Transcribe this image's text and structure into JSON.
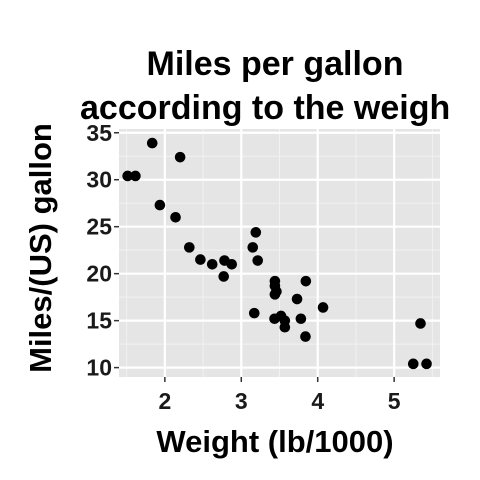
{
  "chart_data": {
    "type": "scatter",
    "title_lines": [
      "Miles per gallon",
      "according to the weigh"
    ],
    "xlabel": "Weight (lb/1000)",
    "ylabel": "Miles/(US) gallon",
    "xlim": [
      1.4,
      5.6
    ],
    "ylim": [
      9,
      35.4
    ],
    "xticks": [
      2,
      3,
      4,
      5
    ],
    "yticks": [
      10,
      15,
      20,
      25,
      30,
      35
    ],
    "grid": true,
    "panel_color": "#e5e5e5",
    "point_color": "#000000",
    "points": [
      {
        "x": 1.513,
        "y": 30.4
      },
      {
        "x": 1.615,
        "y": 30.4
      },
      {
        "x": 1.835,
        "y": 33.9
      },
      {
        "x": 1.935,
        "y": 27.3
      },
      {
        "x": 2.14,
        "y": 26.0
      },
      {
        "x": 2.2,
        "y": 32.4
      },
      {
        "x": 2.32,
        "y": 22.8
      },
      {
        "x": 2.465,
        "y": 21.5
      },
      {
        "x": 2.62,
        "y": 21.0
      },
      {
        "x": 2.77,
        "y": 19.7
      },
      {
        "x": 2.78,
        "y": 21.4
      },
      {
        "x": 2.875,
        "y": 21.0
      },
      {
        "x": 3.15,
        "y": 22.8
      },
      {
        "x": 3.17,
        "y": 15.8
      },
      {
        "x": 3.19,
        "y": 24.4
      },
      {
        "x": 3.215,
        "y": 21.4
      },
      {
        "x": 3.435,
        "y": 15.2
      },
      {
        "x": 3.44,
        "y": 18.7
      },
      {
        "x": 3.44,
        "y": 19.2
      },
      {
        "x": 3.44,
        "y": 17.8
      },
      {
        "x": 3.46,
        "y": 18.1
      },
      {
        "x": 3.52,
        "y": 15.5
      },
      {
        "x": 3.57,
        "y": 15.0
      },
      {
        "x": 3.57,
        "y": 14.3
      },
      {
        "x": 3.73,
        "y": 17.3
      },
      {
        "x": 3.78,
        "y": 15.2
      },
      {
        "x": 3.84,
        "y": 13.3
      },
      {
        "x": 3.845,
        "y": 19.2
      },
      {
        "x": 4.07,
        "y": 16.4
      },
      {
        "x": 5.25,
        "y": 10.4
      },
      {
        "x": 5.345,
        "y": 14.7
      },
      {
        "x": 5.424,
        "y": 10.4
      }
    ]
  }
}
